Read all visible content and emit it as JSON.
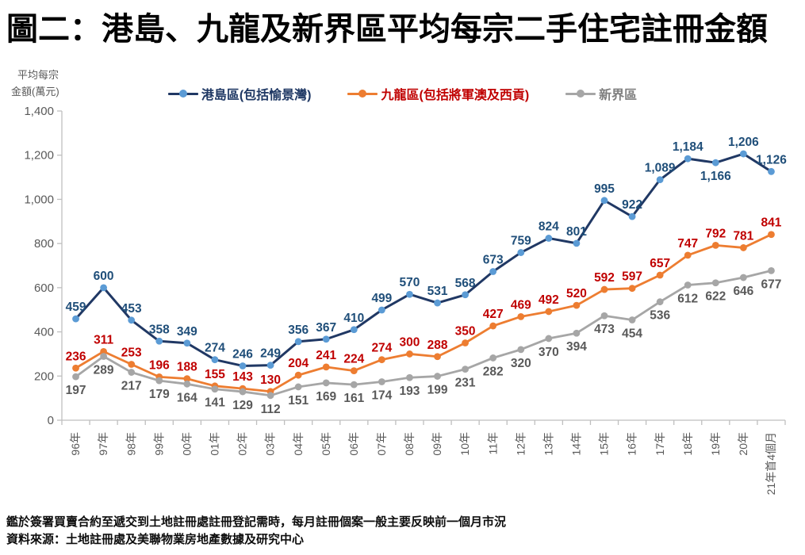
{
  "title": "圖二：港島、九龍及新界區平均每宗二手住宅註冊金額",
  "y_axis": {
    "line1": "平均每宗",
    "line2": "金額(萬元)"
  },
  "footnotes": [
    "鑑於簽署買賣合約至遞交到土地註冊處註冊登記需時，每月註冊個案一般主要反映前一個月市況",
    "資料來源：土地註冊處及美聯物業房地產數據及研究中心"
  ],
  "colors": {
    "axis": "#BFBFBF",
    "tick_text": "#595959"
  },
  "chart_data": {
    "type": "line",
    "title": "圖二：港島、九龍及新界區平均每宗二手住宅註冊金額",
    "xlabel": "",
    "ylabel": "平均每宗金額(萬元)",
    "ylim": [
      0,
      1400
    ],
    "y_ticks": [
      "0",
      "200",
      "400",
      "600",
      "800",
      "1,000",
      "1,200",
      "1,400"
    ],
    "grid": false,
    "legend_position": "top",
    "categories": [
      "96年",
      "97年",
      "98年",
      "99年",
      "00年",
      "01年",
      "02年",
      "03年",
      "04年",
      "05年",
      "06年",
      "07年",
      "08年",
      "09年",
      "10年",
      "11年",
      "12年",
      "13年",
      "14年",
      "15年",
      "16年",
      "17年",
      "18年",
      "19年",
      "20年",
      "21年首4個月"
    ],
    "series": [
      {
        "name": "港島區(包括愉景灣)",
        "line_color": "#203864",
        "marker_color": "#5B9BD5",
        "label_color": "#1F4E79",
        "legend_color": "#1F3864",
        "label_position": "above",
        "label_overrides": {
          "23": "below"
        },
        "values": [
          459,
          600,
          453,
          358,
          349,
          274,
          246,
          249,
          356,
          367,
          410,
          499,
          570,
          531,
          568,
          673,
          759,
          824,
          801,
          995,
          922,
          1089,
          1184,
          1166,
          1206,
          1126
        ]
      },
      {
        "name": "九龍區(包括將軍澳及西貢)",
        "line_color": "#ED7D31",
        "marker_color": "#ED7D31",
        "label_color": "#C00000",
        "legend_color": "#C00000",
        "label_position": "above",
        "label_overrides": {},
        "values": [
          236,
          311,
          253,
          196,
          188,
          155,
          143,
          130,
          204,
          241,
          224,
          274,
          300,
          288,
          350,
          427,
          469,
          492,
          520,
          592,
          597,
          657,
          747,
          792,
          781,
          841
        ]
      },
      {
        "name": "新界區",
        "line_color": "#A6A6A6",
        "marker_color": "#A6A6A6",
        "label_color": "#595959",
        "legend_color": "#7F7F7F",
        "label_position": "below",
        "label_overrides": {},
        "values": [
          197,
          289,
          217,
          179,
          164,
          141,
          129,
          112,
          151,
          169,
          161,
          174,
          193,
          199,
          231,
          282,
          320,
          370,
          394,
          473,
          454,
          536,
          612,
          622,
          646,
          677
        ]
      }
    ]
  }
}
